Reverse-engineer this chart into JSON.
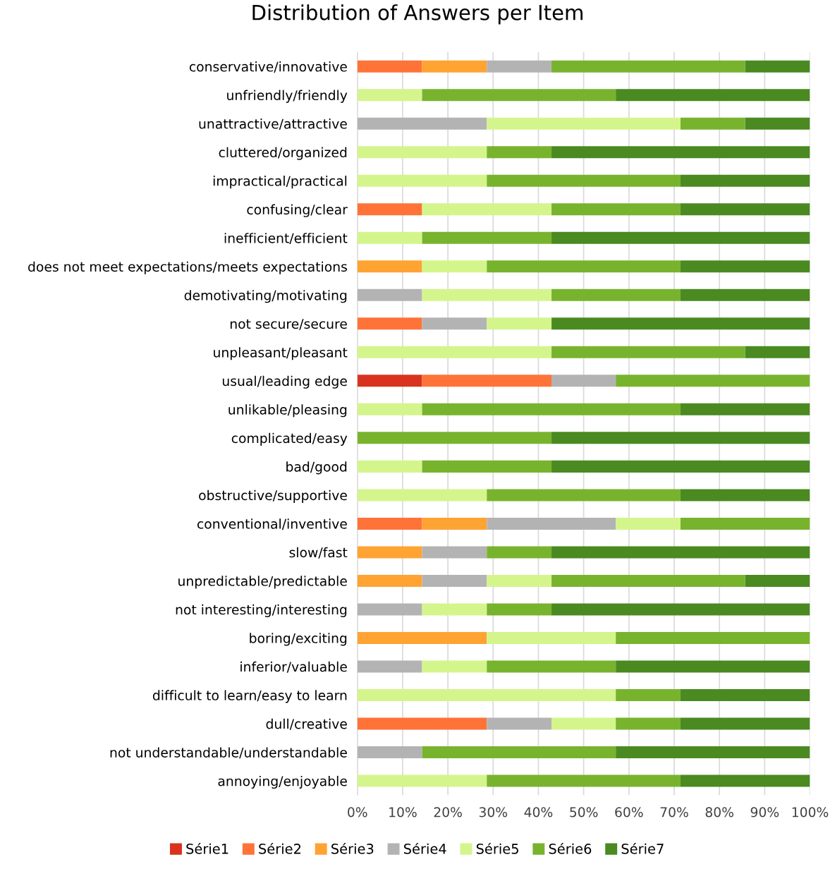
{
  "chart_data": {
    "type": "bar",
    "orientation": "horizontal",
    "stacked": true,
    "title": "Distribution of Answers per Item",
    "categories": [
      "conservative/innovative",
      "unfriendly/friendly",
      "unattractive/attractive",
      "cluttered/organized",
      "impractical/practical",
      "confusing/clear",
      "inefficient/efficient",
      "does not meet expectations/meets expectations",
      "demotivating/motivating",
      "not secure/secure",
      "unpleasant/pleasant",
      "usual/leading edge",
      "unlikable/pleasing",
      "complicated/easy",
      "bad/good",
      "obstructive/supportive",
      "conventional/inventive",
      "slow/fast",
      "unpredictable/predictable",
      "not interesting/interesting",
      "boring/exciting",
      "inferior/valuable",
      "difficult to learn/easy to learn",
      "dull/creative",
      "not understandable/understandable",
      "annoying/enjoyable"
    ],
    "series": [
      {
        "name": "Série1",
        "color": "#d9331f",
        "values": [
          0,
          0,
          0,
          0,
          0,
          0,
          0,
          0,
          0,
          0,
          0,
          14.3,
          0,
          0,
          0,
          0,
          0,
          0,
          0,
          0,
          0,
          0,
          0,
          0,
          0,
          0
        ]
      },
      {
        "name": "Série2",
        "color": "#ff7338",
        "values": [
          14.3,
          0,
          0,
          0,
          0,
          14.3,
          0,
          0,
          0,
          14.3,
          0,
          28.6,
          0,
          0,
          0,
          0,
          14.3,
          0,
          0,
          0,
          0,
          0,
          0,
          28.6,
          0,
          0
        ]
      },
      {
        "name": "Série3",
        "color": "#ffa333",
        "values": [
          14.3,
          0,
          0,
          0,
          0,
          0,
          0,
          14.3,
          0,
          0,
          0,
          0,
          0,
          0,
          0,
          0,
          14.3,
          14.3,
          14.3,
          0,
          28.6,
          0,
          0,
          0,
          0,
          0
        ]
      },
      {
        "name": "Série4",
        "color": "#b3b3b3",
        "values": [
          14.3,
          0,
          28.6,
          0,
          0,
          0,
          0,
          0,
          14.3,
          14.3,
          0,
          14.2,
          0,
          0,
          0,
          0,
          28.5,
          14.3,
          14.3,
          14.3,
          0,
          14.3,
          0,
          14.3,
          14.3,
          0
        ]
      },
      {
        "name": "Série5",
        "color": "#d4f58c",
        "values": [
          0,
          14.3,
          42.8,
          28.6,
          28.6,
          28.6,
          14.3,
          14.3,
          28.6,
          14.3,
          42.9,
          0,
          14.3,
          0,
          14.3,
          28.6,
          14.3,
          0,
          14.3,
          14.3,
          28.5,
          14.3,
          57.1,
          14.2,
          0,
          28.6
        ]
      },
      {
        "name": "Série6",
        "color": "#78b32e",
        "values": [
          42.8,
          42.8,
          14.3,
          14.3,
          42.8,
          28.5,
          28.6,
          42.8,
          28.5,
          0,
          42.8,
          42.9,
          57.1,
          42.9,
          28.6,
          42.8,
          28.6,
          14.3,
          42.8,
          14.3,
          42.9,
          28.5,
          14.3,
          14.3,
          42.8,
          42.8
        ]
      },
      {
        "name": "Série7",
        "color": "#4a8a21",
        "values": [
          14.3,
          42.9,
          14.3,
          57.1,
          28.6,
          28.6,
          57.1,
          28.6,
          28.6,
          57.1,
          14.3,
          0,
          28.6,
          57.1,
          57.1,
          28.6,
          0,
          57.1,
          14.3,
          57.1,
          0,
          42.9,
          28.6,
          28.6,
          42.9,
          28.6
        ]
      }
    ],
    "xlim": [
      0,
      100
    ],
    "xticks": [
      {
        "value": 0,
        "label": "0%"
      },
      {
        "value": 10,
        "label": "10%"
      },
      {
        "value": 20,
        "label": "20%"
      },
      {
        "value": 30,
        "label": "30%"
      },
      {
        "value": 40,
        "label": "40%"
      },
      {
        "value": 50,
        "label": "50%"
      },
      {
        "value": 60,
        "label": "60%"
      },
      {
        "value": 70,
        "label": "70%"
      },
      {
        "value": 80,
        "label": "80%"
      },
      {
        "value": 90,
        "label": "90%"
      },
      {
        "value": 100,
        "label": "100%"
      }
    ],
    "grid": "x",
    "legend": "bottom"
  }
}
